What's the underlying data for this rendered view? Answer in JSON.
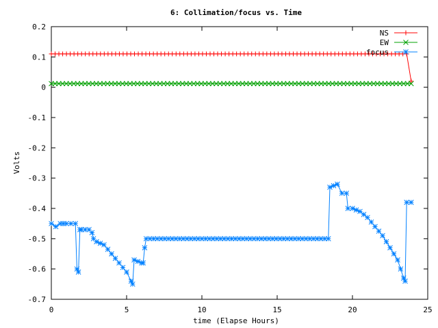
{
  "chart_data": {
    "type": "line",
    "title": "6: Collimation/focus vs. Time",
    "xlabel": "time (Elapse Hours)",
    "ylabel": "Volts",
    "xlim": [
      0,
      25
    ],
    "ylim": [
      -0.7,
      0.2
    ],
    "xticks": [
      0,
      5,
      10,
      15,
      20,
      25
    ],
    "yticks": [
      0.2,
      0.1,
      0,
      -0.1,
      -0.2,
      -0.3,
      -0.4,
      -0.5,
      -0.6,
      -0.7
    ],
    "grid": false,
    "legend_position": "top-right",
    "series": [
      {
        "name": "NS",
        "color": "#ff0000",
        "marker": "plus",
        "x": [
          0,
          23.6,
          23.9
        ],
        "y": [
          0.11,
          0.11,
          0.02
        ]
      },
      {
        "name": "EW",
        "color": "#00a000",
        "marker": "cross",
        "x": [
          0,
          23.9
        ],
        "y": [
          0.012,
          0.012
        ]
      },
      {
        "name": "focus",
        "color": "#0080ff",
        "marker": "star",
        "x": [
          0,
          0.3,
          0.6,
          1.0,
          1.6,
          1.7,
          1.8,
          1.9,
          2.0,
          2.5,
          2.7,
          2.8,
          3.0,
          3.5,
          4.0,
          4.5,
          5.0,
          5.3,
          5.4,
          5.5,
          6.0,
          6.1,
          6.2,
          6.3,
          10,
          18.4,
          18.5,
          19.0,
          19.3,
          19.6,
          19.7,
          20.0,
          20.5,
          21,
          22,
          23,
          23.4,
          23.5,
          23.6,
          23.9
        ],
        "y": [
          -0.45,
          -0.46,
          -0.45,
          -0.45,
          -0.45,
          -0.6,
          -0.61,
          -0.47,
          -0.47,
          -0.47,
          -0.48,
          -0.5,
          -0.51,
          -0.52,
          -0.55,
          -0.58,
          -0.61,
          -0.64,
          -0.65,
          -0.57,
          -0.58,
          -0.58,
          -0.53,
          -0.5,
          -0.5,
          -0.5,
          -0.33,
          -0.32,
          -0.35,
          -0.35,
          -0.4,
          -0.4,
          -0.41,
          -0.43,
          -0.49,
          -0.57,
          -0.63,
          -0.64,
          -0.38,
          -0.38
        ]
      }
    ]
  }
}
